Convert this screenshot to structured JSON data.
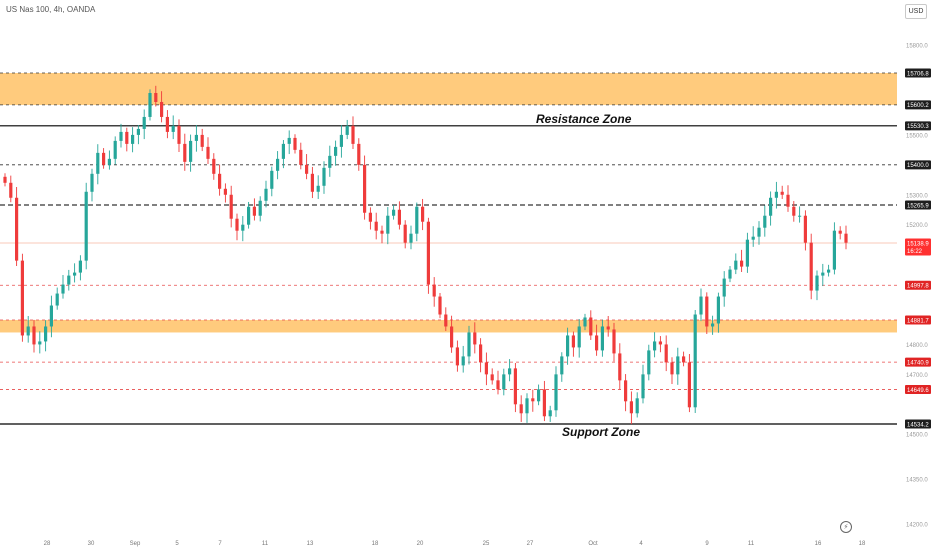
{
  "header": {
    "symbol": "US Nas 100, 4h, OANDA",
    "currency_button": "USD"
  },
  "chart_data": {
    "type": "candlestick",
    "title": "US Nas 100, 4h, OANDA",
    "ylim": [
      14180,
      15950
    ],
    "y_axis_ticks": [
      14200.0,
      14350.0,
      14500.0,
      14650.0,
      14700.0,
      14800.0,
      15000.0,
      15200.0,
      15300.0,
      15500.0,
      15800.0
    ],
    "x_axis_ticks": [
      "28",
      "30",
      "Sep",
      "5",
      "7",
      "11",
      "13",
      "18",
      "20",
      "25",
      "27",
      "Oct",
      "4",
      "9",
      "11",
      "16",
      "18"
    ],
    "zones": [
      {
        "low": 15600.2,
        "high": 15706.8,
        "color": "#ffc266"
      },
      {
        "low": 14840.0,
        "high": 14881.7,
        "color": "#ffc266"
      }
    ],
    "levels": [
      {
        "price": 15706.8,
        "style": "dashed",
        "color": "#333333"
      },
      {
        "price": 15600.2,
        "style": "dashed",
        "color": "#333333"
      },
      {
        "price": 15530.3,
        "style": "solid",
        "color": "#000000"
      },
      {
        "price": 15400.0,
        "style": "dashed",
        "color": "#333333"
      },
      {
        "price": 15265.9,
        "style": "dashed",
        "color": "#000000"
      },
      {
        "price": 14997.8,
        "style": "dashed",
        "color": "#e84a4a"
      },
      {
        "price": 14881.7,
        "style": "dashed",
        "color": "#e84a4a"
      },
      {
        "price": 14740.9,
        "style": "dashed",
        "color": "#e84a4a"
      },
      {
        "price": 14649.6,
        "style": "dashed",
        "color": "#e84a4a"
      },
      {
        "price": 14534.2,
        "style": "solid",
        "color": "#000000"
      }
    ],
    "price_labels": [
      {
        "price": 15706.8,
        "text": "15706.8",
        "style": "dark"
      },
      {
        "price": 15600.2,
        "text": "15600.2",
        "style": "dark"
      },
      {
        "price": 15530.3,
        "text": "15530.3",
        "style": "dark"
      },
      {
        "price": 15400.0,
        "text": "15400.0",
        "style": "dark"
      },
      {
        "price": 15265.9,
        "text": "15265.9",
        "style": "dark"
      },
      {
        "price": 15138.9,
        "text": "15138.9",
        "style": "current"
      },
      {
        "price": 14997.8,
        "text": "14997.8",
        "style": "red"
      },
      {
        "price": 14881.7,
        "text": "14881.7",
        "style": "red"
      },
      {
        "price": 14740.9,
        "text": "14740.9",
        "style": "red"
      },
      {
        "price": 14649.6,
        "text": "14649.6",
        "style": "red"
      },
      {
        "price": 14534.2,
        "text": "14534.2",
        "style": "dark"
      }
    ],
    "current_price": 15138.9,
    "countdown": "16:22",
    "annotations": [
      {
        "text": "Resistance Zone",
        "near_price": 15530.3
      },
      {
        "text": "Support Zone",
        "near_price": 14534.2
      }
    ],
    "colors": {
      "up": "#26a69a",
      "down": "#ef3b3b",
      "zone": "#ffc266",
      "current_price": "#ff3030"
    },
    "close_prices": [
      15340,
      15290,
      15080,
      14830,
      14860,
      14800,
      14810,
      14860,
      14930,
      14970,
      15000,
      15030,
      15040,
      15080,
      15310,
      15370,
      15440,
      15400,
      15420,
      15480,
      15510,
      15470,
      15500,
      15520,
      15560,
      15640,
      15610,
      15560,
      15510,
      15530,
      15470,
      15410,
      15480,
      15500,
      15460,
      15420,
      15370,
      15320,
      15300,
      15220,
      15180,
      15200,
      15260,
      15230,
      15280,
      15320,
      15380,
      15420,
      15470,
      15490,
      15450,
      15400,
      15370,
      15310,
      15330,
      15390,
      15430,
      15460,
      15500,
      15530,
      15470,
      15400,
      15240,
      15210,
      15180,
      15170,
      15230,
      15250,
      15200,
      15140,
      15170,
      15260,
      15210,
      15000,
      14960,
      14900,
      14860,
      14790,
      14730,
      14760,
      14840,
      14800,
      14740,
      14700,
      14680,
      14650,
      14700,
      14720,
      14600,
      14570,
      14620,
      14610,
      14650,
      14560,
      14580,
      14700,
      14760,
      14830,
      14790,
      14860,
      14890,
      14830,
      14780,
      14860,
      14850,
      14770,
      14680,
      14610,
      14570,
      14620,
      14700,
      14780,
      14810,
      14800,
      14740,
      14700,
      14760,
      14740,
      14590,
      14900,
      14960,
      14860,
      14870,
      14960,
      15020,
      15050,
      15080,
      15060,
      15150,
      15160,
      15190,
      15230,
      15290,
      15310,
      15300,
      15260,
      15230,
      15230,
      15140,
      14980,
      15030,
      15040,
      15050,
      15180,
      15170,
      15140
    ]
  }
}
